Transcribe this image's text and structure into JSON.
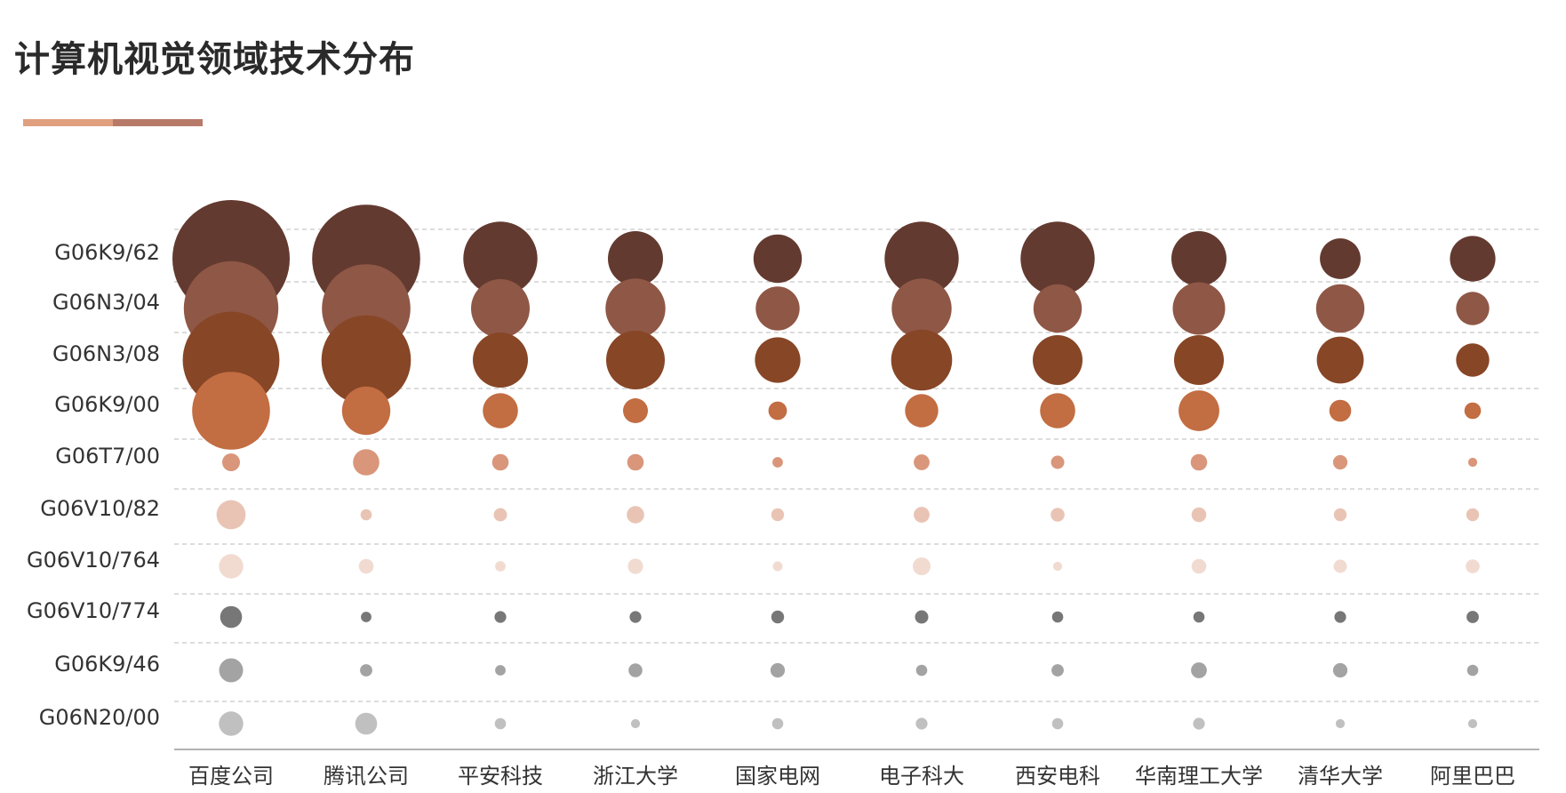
{
  "title": "计算机视觉领域技术分布",
  "colors": {
    "title_underline": [
      "#e0a080",
      "#b87a68"
    ],
    "grid": "#c8c8c8",
    "axis": "#999999",
    "rows": [
      "#633a30",
      "#8f5746",
      "#874626",
      "#c26d42",
      "#d9967a",
      "#e9c4b4",
      "#f1dbd1",
      "#777777",
      "#a3a3a3",
      "#c0c0c0"
    ]
  },
  "chart_data": {
    "type": "bubble",
    "title": "计算机视觉领域技术分布",
    "x_categories": [
      "百度公司",
      "腾讯公司",
      "平安科技",
      "浙江大学",
      "国家电网",
      "电子科大",
      "西安电科",
      "华南理工大学",
      "清华大学",
      "阿里巴巴"
    ],
    "y_categories": [
      "G06K9/62",
      "G06N3/04",
      "G06N3/08",
      "G06K9/00",
      "G06T7/00",
      "G06V10/82",
      "G06V10/764",
      "G06V10/774",
      "G06K9/46",
      "G06N20/00"
    ],
    "values": [
      [
        100,
        85,
        40,
        22,
        17,
        40,
        40,
        22,
        12,
        15
      ],
      [
        65,
        57,
        25,
        26,
        14,
        26,
        17,
        20,
        17,
        8
      ],
      [
        68,
        58,
        22,
        25,
        15,
        27,
        18,
        18,
        16,
        8
      ],
      [
        44,
        17,
        9,
        4.5,
        2.5,
        8,
        9,
        12,
        3.5,
        2
      ],
      [
        2.3,
        5,
        2,
        2,
        0.8,
        1.8,
        1.3,
        2,
        1.5,
        0.6
      ],
      [
        6.2,
        0.9,
        1.3,
        2.2,
        1.2,
        1.8,
        1.4,
        1.6,
        1.2,
        1.2
      ],
      [
        4.3,
        1.6,
        0.8,
        1.7,
        0.7,
        2.3,
        0.6,
        1.6,
        1.3,
        1.4
      ],
      [
        3.5,
        0.8,
        1,
        1,
        1.2,
        1.3,
        0.9,
        0.9,
        1,
        1.1
      ],
      [
        4.2,
        1.1,
        0.8,
        1.4,
        1.5,
        0.9,
        1.1,
        1.8,
        1.5,
        0.9
      ],
      [
        4.3,
        3.5,
        0.9,
        0.6,
        0.9,
        1,
        0.9,
        1,
        0.6,
        0.6
      ]
    ],
    "size_encoding": "bubble area proportional to value",
    "grid": "dashed horizontal lines",
    "legend": "none"
  }
}
